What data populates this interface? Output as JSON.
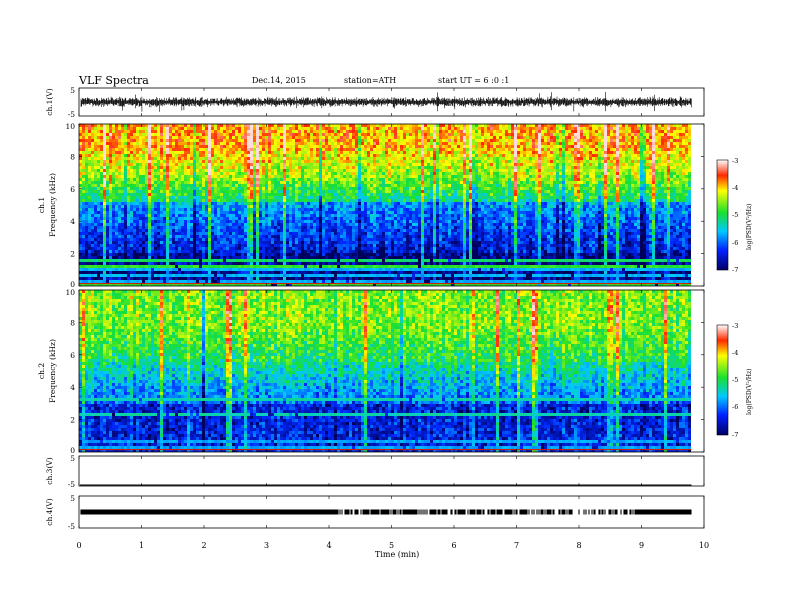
{
  "header": {
    "title": "VLF Spectra",
    "date": "Dec.14, 2015",
    "station": "station=ATH",
    "start": "start  UT  =   6  :0  :1"
  },
  "chart_data": [
    {
      "id": "ch1",
      "type": "line",
      "ylabel": "ch.1(V)",
      "ylim": [
        -5,
        5
      ],
      "ytick_labels": [
        "5",
        "-5"
      ],
      "baseline": 0,
      "description_visible": "dense oscillating trace near 0 V with spikes",
      "x_range_min": [
        0,
        9.8
      ]
    },
    {
      "id": "ch1-spectrogram",
      "type": "heatmap",
      "ylabel": "Frequency  (kHz)",
      "channel_label": "ch.1",
      "ylim": [
        0,
        10
      ],
      "ytick_labels": [
        "0",
        "2",
        "4",
        "6",
        "8",
        "10"
      ],
      "x_range_min": [
        0,
        9.8
      ],
      "colorbar": {
        "label": "log(PSD(V²/Hz)",
        "range": [
          -7,
          -3
        ],
        "tick_labels": [
          "-3",
          "-4",
          "-5",
          "-6",
          "-7"
        ]
      }
    },
    {
      "id": "ch2-spectrogram",
      "type": "heatmap",
      "ylabel": "Frequency  (kHz)",
      "channel_label": "ch.2",
      "ylim": [
        0,
        10
      ],
      "ytick_labels": [
        "0",
        "2",
        "4",
        "6",
        "8",
        "10"
      ],
      "x_range_min": [
        0,
        9.8
      ],
      "colorbar": {
        "label": "log(PSD(V²/Hz)",
        "range": [
          -7,
          -3
        ],
        "tick_labels": [
          "-3",
          "-4",
          "-5",
          "-6",
          "-7"
        ]
      }
    },
    {
      "id": "ch3",
      "type": "line",
      "ylabel": "ch.3(V)",
      "ylim": [
        -5,
        5
      ],
      "ytick_labels": [
        "5",
        "-5"
      ],
      "baseline": -5
    },
    {
      "id": "ch4",
      "type": "line",
      "ylabel": "ch.4(V)",
      "ylim": [
        -5,
        5
      ],
      "ytick_labels": [
        "5",
        "-5"
      ],
      "baseline": 0
    }
  ],
  "xaxis": {
    "label": "Time  (min)",
    "range": [
      0,
      10
    ],
    "tick_labels": [
      "0",
      "1",
      "2",
      "3",
      "4",
      "5",
      "6",
      "7",
      "8",
      "9",
      "10"
    ]
  },
  "colors": {
    "dark_blue": "#000066",
    "blue": "#0032ff",
    "cyan": "#00d0ff",
    "green": "#18e030",
    "yellow": "#ffff00",
    "red": "#ff1400"
  }
}
